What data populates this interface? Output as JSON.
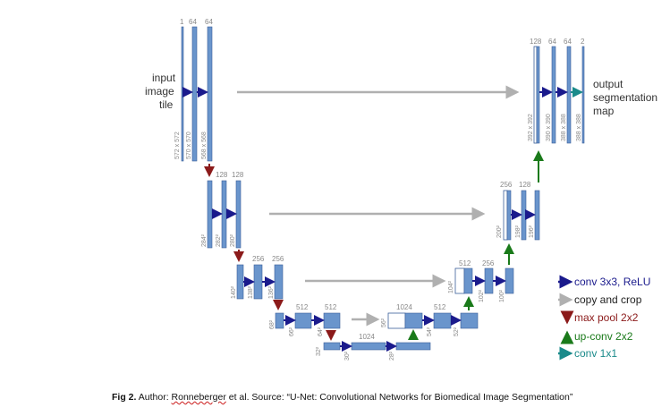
{
  "diagram": {
    "input_label": [
      "input",
      "image",
      "tile"
    ],
    "output_label": [
      "output",
      "segmentation",
      "map"
    ],
    "level1": {
      "channels": [
        "1",
        "64",
        "64"
      ],
      "dims": [
        "572 x 572",
        "570 x 570",
        "568 x 568"
      ]
    },
    "level2": {
      "channels": [
        "128",
        "128"
      ],
      "dims": [
        "284²",
        "282²",
        "280²"
      ]
    },
    "level3": {
      "channels": [
        "256",
        "256"
      ],
      "dims": [
        "140²",
        "138²",
        "136²"
      ]
    },
    "level4": {
      "channels": [
        "512",
        "512"
      ],
      "dims": [
        "68²",
        "66²",
        "64²"
      ]
    },
    "bottom": {
      "channels": [
        "1024"
      ],
      "dims": [
        "32²",
        "30²",
        "28²"
      ]
    },
    "up4": {
      "channels": [
        "1024",
        "512"
      ],
      "dims": [
        "56²",
        "54²",
        "52²"
      ]
    },
    "up3": {
      "channels": [
        "512",
        "256"
      ],
      "dims": [
        "104²",
        "102²",
        "100²"
      ]
    },
    "up2": {
      "channels": [
        "256",
        "128"
      ],
      "dims": [
        "200²",
        "198²",
        "196²"
      ]
    },
    "up1": {
      "channels": [
        "128",
        "64",
        "64",
        "2"
      ],
      "dims": [
        "392 x 392",
        "390 x 390",
        "388 x 388",
        "388 x 388"
      ]
    }
  },
  "legend": {
    "items": [
      {
        "label": "conv 3x3, ReLU",
        "color": "#1a1a8c",
        "icon": "arrow-right-icon"
      },
      {
        "label": "copy and crop",
        "color": "#b0b0b0",
        "icon": "arrow-right-icon"
      },
      {
        "label": "max pool 2x2",
        "color": "#8b1a1a",
        "icon": "arrow-down-icon"
      },
      {
        "label": "up-conv 2x2",
        "color": "#1a7a1a",
        "icon": "arrow-up-icon"
      },
      {
        "label": "conv 1x1",
        "color": "#1a8a8a",
        "icon": "arrow-right-icon"
      }
    ]
  },
  "caption": {
    "fig": "Fig 2.",
    "author_prefix": " Author: ",
    "author": "Ronneberger",
    "rest": " et al. Source: “U-Net: Convolutional Networks for Biomedical Image Segmentation”"
  },
  "colors": {
    "block_fill": "#6a95cc",
    "block_stroke": "#3a5f9a",
    "conv": "#1a1a8c",
    "copy": "#b0b0b0",
    "pool": "#8b1a1a",
    "upconv": "#1a7a1a",
    "conv1x1": "#1a8a8a"
  }
}
